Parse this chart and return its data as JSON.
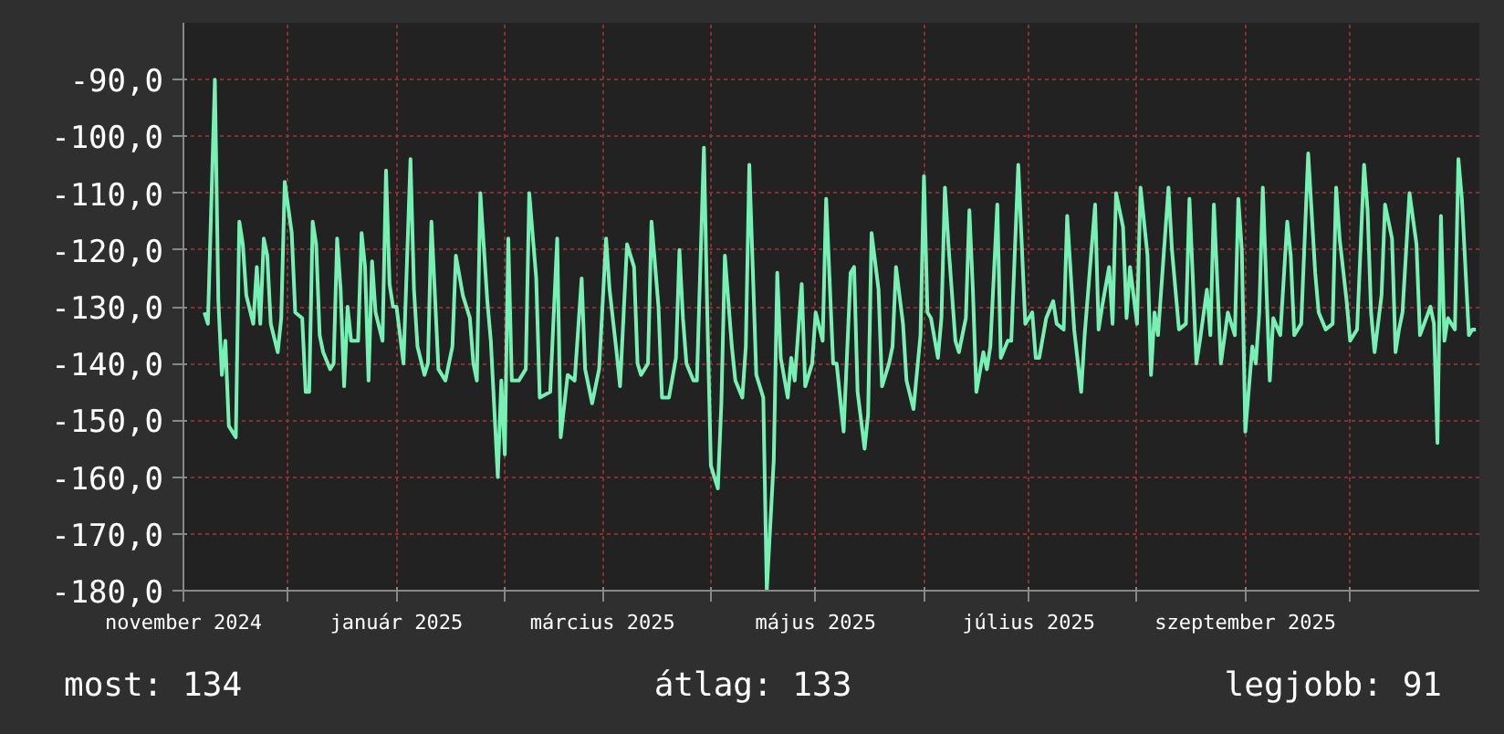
{
  "chart_data": {
    "type": "line",
    "x": [
      "2024-11-07",
      "2024-11-08",
      "2024-11-10",
      "2024-11-11",
      "2024-11-12",
      "2024-11-13",
      "2024-11-14",
      "2024-11-16",
      "2024-11-17",
      "2024-11-18",
      "2024-11-19",
      "2024-11-21",
      "2024-11-22",
      "2024-11-23",
      "2024-11-24",
      "2024-11-25",
      "2024-11-26",
      "2024-11-28",
      "2024-11-29",
      "2024-11-30",
      "2024-12-02",
      "2024-12-03",
      "2024-12-05",
      "2024-12-06",
      "2024-12-07",
      "2024-12-08",
      "2024-12-09",
      "2024-12-10",
      "2024-12-11",
      "2024-12-13",
      "2024-12-14",
      "2024-12-15",
      "2024-12-16",
      "2024-12-17",
      "2024-12-18",
      "2024-12-19",
      "2024-12-21",
      "2024-12-22",
      "2024-12-23",
      "2024-12-24",
      "2024-12-25",
      "2024-12-26",
      "2024-12-28",
      "2024-12-29",
      "2024-12-30",
      "2024-12-31",
      "2025-01-01",
      "2025-01-03",
      "2025-01-05",
      "2025-01-06",
      "2025-01-07",
      "2025-01-09",
      "2025-01-10",
      "2025-01-11",
      "2025-01-13",
      "2025-01-15",
      "2025-01-17",
      "2025-01-18",
      "2025-01-20",
      "2025-01-22",
      "2025-01-23",
      "2025-01-24",
      "2025-01-25",
      "2025-01-27",
      "2025-01-28",
      "2025-01-30",
      "2025-01-31",
      "2025-02-01",
      "2025-02-02",
      "2025-02-03",
      "2025-02-05",
      "2025-02-07",
      "2025-02-08",
      "2025-02-10",
      "2025-02-11",
      "2025-02-14",
      "2025-02-16",
      "2025-02-17",
      "2025-02-19",
      "2025-02-21",
      "2025-02-23",
      "2025-02-24",
      "2025-02-26",
      "2025-02-28",
      "2025-03-02",
      "2025-03-03",
      "2025-03-05",
      "2025-03-06",
      "2025-03-08",
      "2025-03-10",
      "2025-03-11",
      "2025-03-12",
      "2025-03-14",
      "2025-03-15",
      "2025-03-17",
      "2025-03-18",
      "2025-03-20",
      "2025-03-22",
      "2025-03-23",
      "2025-03-24",
      "2025-03-25",
      "2025-03-27",
      "2025-03-28",
      "2025-03-30",
      "2025-03-31",
      "2025-04-01",
      "2025-04-03",
      "2025-04-04",
      "2025-04-05",
      "2025-04-07",
      "2025-04-08",
      "2025-04-10",
      "2025-04-11",
      "2025-04-12",
      "2025-04-14",
      "2025-04-16",
      "2025-04-17",
      "2025-04-19",
      "2025-04-20",
      "2025-04-21",
      "2025-04-23",
      "2025-04-24",
      "2025-04-25",
      "2025-04-27",
      "2025-04-28",
      "2025-04-30",
      "2025-05-01",
      "2025-05-03",
      "2025-05-04",
      "2025-05-06",
      "2025-05-07",
      "2025-05-09",
      "2025-05-11",
      "2025-05-12",
      "2025-05-13",
      "2025-05-15",
      "2025-05-16",
      "2025-05-17",
      "2025-05-19",
      "2025-05-20",
      "2025-05-22",
      "2025-05-23",
      "2025-05-24",
      "2025-05-26",
      "2025-05-27",
      "2025-05-29",
      "2025-05-31",
      "2025-06-01",
      "2025-06-02",
      "2025-06-03",
      "2025-06-05",
      "2025-06-06",
      "2025-06-07",
      "2025-06-08",
      "2025-06-10",
      "2025-06-11",
      "2025-06-13",
      "2025-06-14",
      "2025-06-15",
      "2025-06-16",
      "2025-06-18",
      "2025-06-19",
      "2025-06-20",
      "2025-06-22",
      "2025-06-23",
      "2025-06-25",
      "2025-06-26",
      "2025-06-28",
      "2025-06-30",
      "2025-07-02",
      "2025-07-03",
      "2025-07-04",
      "2025-07-06",
      "2025-07-08",
      "2025-07-09",
      "2025-07-11",
      "2025-07-12",
      "2025-07-14",
      "2025-07-16",
      "2025-07-17",
      "2025-07-20",
      "2025-07-21",
      "2025-07-22",
      "2025-07-24",
      "2025-07-25",
      "2025-07-26",
      "2025-07-28",
      "2025-07-29",
      "2025-07-30",
      "2025-08-01",
      "2025-08-02",
      "2025-08-04",
      "2025-08-05",
      "2025-08-06",
      "2025-08-07",
      "2025-08-10",
      "2025-08-11",
      "2025-08-12",
      "2025-08-13",
      "2025-08-15",
      "2025-08-16",
      "2025-08-18",
      "2025-08-19",
      "2025-08-21",
      "2025-08-22",
      "2025-08-23",
      "2025-08-25",
      "2025-08-27",
      "2025-08-29",
      "2025-08-30",
      "2025-08-31",
      "2025-09-01",
      "2025-09-03",
      "2025-09-04",
      "2025-09-05",
      "2025-09-06",
      "2025-09-08",
      "2025-09-09",
      "2025-09-11",
      "2025-09-13",
      "2025-09-14",
      "2025-09-15",
      "2025-09-17",
      "2025-09-19",
      "2025-09-21",
      "2025-09-22",
      "2025-09-24",
      "2025-09-26",
      "2025-09-27",
      "2025-09-28",
      "2025-09-30",
      "2025-10-01",
      "2025-10-03",
      "2025-10-05",
      "2025-10-06",
      "2025-10-07",
      "2025-10-08",
      "2025-10-10",
      "2025-10-11",
      "2025-10-13",
      "2025-10-14",
      "2025-10-15",
      "2025-10-16",
      "2025-10-18",
      "2025-10-20",
      "2025-10-21",
      "2025-10-24",
      "2025-10-25",
      "2025-10-26",
      "2025-10-27",
      "2025-10-28",
      "2025-10-29",
      "2025-10-31",
      "2025-11-01",
      "2025-11-02",
      "2025-11-04",
      "2025-11-05",
      "2025-11-06"
    ],
    "series": [
      {
        "color": "#77f0b4",
        "values": [
          -131,
          -133,
          -90,
          -129,
          -142,
          -136,
          -151,
          -153,
          -115,
          -119,
          -128,
          -133,
          -123,
          -133,
          -118,
          -121,
          -133,
          -138,
          -132,
          -108,
          -117,
          -131,
          -132,
          -145,
          -145,
          -115,
          -119,
          -135,
          -138,
          -141,
          -140,
          -118,
          -127,
          -144,
          -130,
          -136,
          -136,
          -117,
          -123,
          -143,
          -122,
          -131,
          -136,
          -106,
          -126,
          -130,
          -130,
          -140,
          -104,
          -127,
          -137,
          -142,
          -140,
          -115,
          -141,
          -143,
          -137,
          -121,
          -128,
          -132,
          -140,
          -143,
          -110,
          -129,
          -136,
          -160,
          -143,
          -156,
          -118,
          -143,
          -143,
          -141,
          -110,
          -125,
          -146,
          -145,
          -118,
          -153,
          -142,
          -143,
          -125,
          -141,
          -147,
          -141,
          -118,
          -127,
          -138,
          -144,
          -119,
          -123,
          -140,
          -142,
          -140,
          -115,
          -130,
          -146,
          -146,
          -139,
          -120,
          -132,
          -140,
          -143,
          -143,
          -102,
          -132,
          -158,
          -162,
          -147,
          -121,
          -137,
          -143,
          -146,
          -137,
          -105,
          -142,
          -146,
          -180,
          -157,
          -124,
          -139,
          -146,
          -139,
          -143,
          -126,
          -144,
          -140,
          -131,
          -136,
          -111,
          -140,
          -140,
          -152,
          -124,
          -123,
          -145,
          -155,
          -149,
          -117,
          -127,
          -144,
          -140,
          -137,
          -123,
          -133,
          -143,
          -148,
          -135,
          -107,
          -131,
          -132,
          -139,
          -132,
          -109,
          -119,
          -136,
          -138,
          -132,
          -113,
          -127,
          -145,
          -138,
          -141,
          -137,
          -112,
          -139,
          -136,
          -136,
          -105,
          -133,
          -131,
          -139,
          -139,
          -132,
          -129,
          -133,
          -134,
          -114,
          -134,
          -145,
          -135,
          -112,
          -134,
          -130,
          -123,
          -133,
          -110,
          -116,
          -132,
          -123,
          -133,
          -109,
          -121,
          -142,
          -131,
          -135,
          -109,
          -120,
          -127,
          -134,
          -133,
          -111,
          -140,
          -136,
          -127,
          -135,
          -112,
          -140,
          -131,
          -135,
          -111,
          -120,
          -152,
          -137,
          -140,
          -131,
          -109,
          -143,
          -132,
          -135,
          -115,
          -121,
          -135,
          -133,
          -103,
          -124,
          -131,
          -134,
          -133,
          -109,
          -118,
          -129,
          -136,
          -134,
          -105,
          -113,
          -131,
          -138,
          -128,
          -112,
          -118,
          -138,
          -134,
          -131,
          -110,
          -119,
          -135,
          -130,
          -133,
          -154,
          -114,
          -136,
          -132,
          -134,
          -104,
          -111,
          -135,
          -134,
          -134
        ]
      }
    ],
    "xlim": [
      "2024-11-01",
      "2025-11-07"
    ],
    "xticks": [
      {
        "value": "2024-11-01",
        "label": "november 2024"
      },
      {
        "value": "2024-12-01",
        "label": null
      },
      {
        "value": "2025-01-01",
        "label": "január 2025"
      },
      {
        "value": "2025-02-01",
        "label": null
      },
      {
        "value": "2025-03-01",
        "label": "március 2025"
      },
      {
        "value": "2025-04-01",
        "label": null
      },
      {
        "value": "2025-05-01",
        "label": "május 2025"
      },
      {
        "value": "2025-06-01",
        "label": null
      },
      {
        "value": "2025-07-01",
        "label": "július 2025"
      },
      {
        "value": "2025-08-01",
        "label": null
      },
      {
        "value": "2025-09-01",
        "label": "szeptember 2025"
      },
      {
        "value": "2025-10-01",
        "label": null
      }
    ],
    "ylim": [
      -180,
      -80
    ],
    "yticks": [
      {
        "value": -180,
        "label": "-180,0"
      },
      {
        "value": -170,
        "label": "-170,0"
      },
      {
        "value": -160,
        "label": "-160,0"
      },
      {
        "value": -150,
        "label": "-150,0"
      },
      {
        "value": -140,
        "label": "-140,0"
      },
      {
        "value": -130,
        "label": "-130,0"
      },
      {
        "value": -120,
        "label": "-120,0"
      },
      {
        "value": -110,
        "label": "-110,0"
      },
      {
        "value": -100,
        "label": "-100,0"
      },
      {
        "value": -90,
        "label": "-90,0"
      }
    ],
    "grid": true,
    "line_style": "solid",
    "annotations": [
      "most: 134",
      "átlag: 133",
      "legjobb: 91"
    ]
  }
}
